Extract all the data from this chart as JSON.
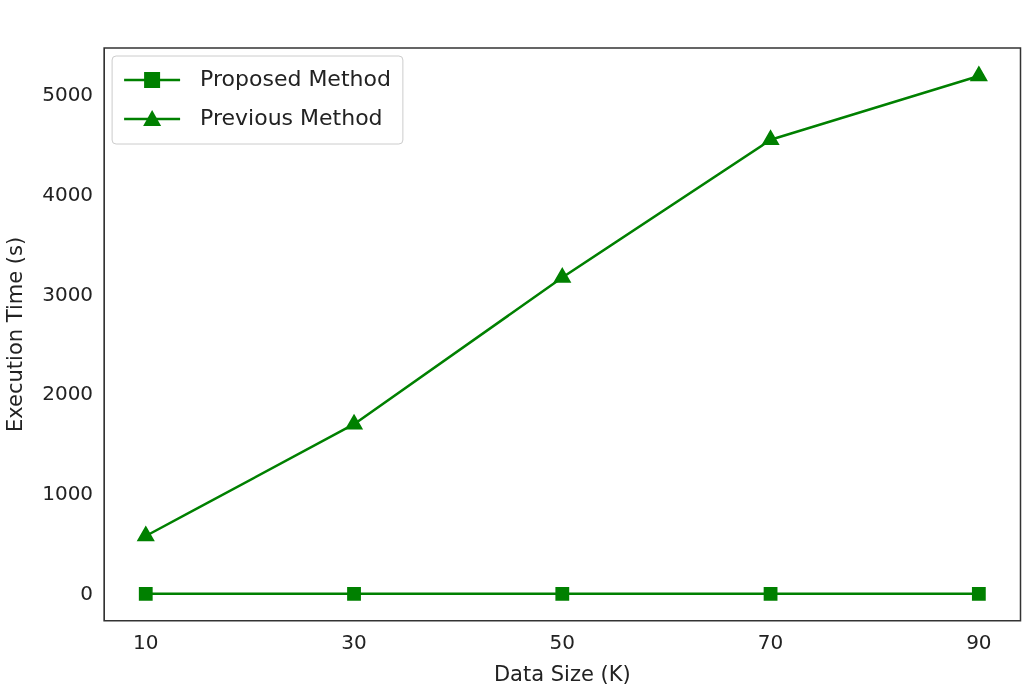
{
  "chart_data": {
    "type": "line",
    "xlabel": "Data Size (K)",
    "ylabel": "Execution Time (s)",
    "x": [
      10,
      30,
      50,
      70,
      90
    ],
    "series": [
      {
        "name": "Proposed Method",
        "color": "#008000",
        "marker": "square",
        "values": [
          10,
          10,
          10,
          10,
          10
        ]
      },
      {
        "name": "Previous Method",
        "color": "#008000",
        "marker": "triangle",
        "values": [
          590,
          1710,
          3180,
          4560,
          5200
        ]
      }
    ],
    "xlim": [
      6,
      94
    ],
    "xticks": [
      10,
      30,
      50,
      70,
      90
    ],
    "ylim": [
      -260,
      5480
    ],
    "yticks": [
      0,
      1000,
      2000,
      3000,
      4000,
      5000
    ],
    "grid": false,
    "legend": "top left",
    "line_style": "solid"
  }
}
